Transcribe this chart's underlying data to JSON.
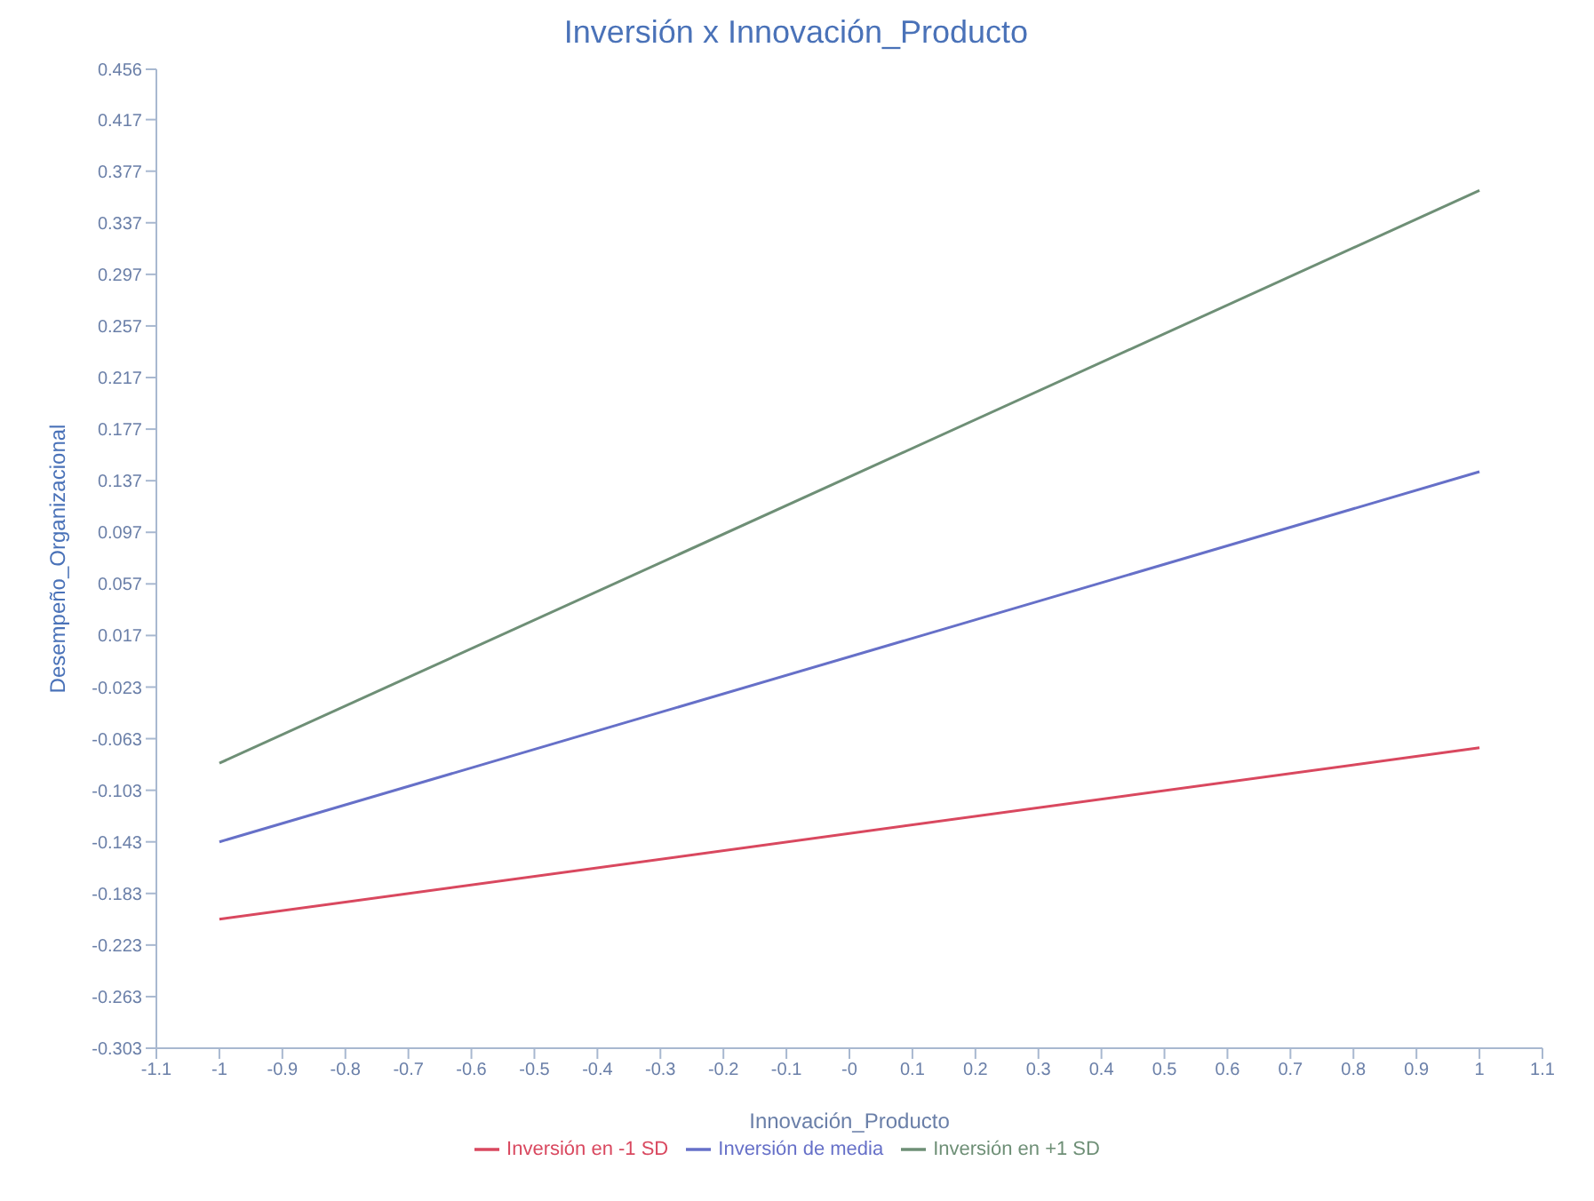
{
  "chart_data": {
    "type": "line",
    "title": "Inversión x Innovación_Producto",
    "xlabel": "Innovación_Producto",
    "ylabel": "Desempeño_Organizacional",
    "x": [
      -1,
      1
    ],
    "series": [
      {
        "name": "Inversión en -1 SD",
        "color": "#d9485f",
        "values": [
          -0.203,
          -0.07
        ]
      },
      {
        "name": "Inversión de media",
        "color": "#6670c8",
        "values": [
          -0.143,
          0.144
        ]
      },
      {
        "name": "Inversión en +1 SD",
        "color": "#6e8f76",
        "values": [
          -0.082,
          0.362
        ]
      }
    ],
    "xlim": [
      -1.1,
      1.1
    ],
    "xticks": [
      -1.1,
      -1,
      -0.9,
      -0.8,
      -0.7,
      -0.6,
      -0.5,
      -0.4,
      -0.3,
      -0.2,
      -0.1,
      {
        "value": 0,
        "label": "-0"
      },
      0.1,
      0.2,
      0.3,
      0.4,
      0.5,
      0.6,
      0.7,
      0.8,
      0.9,
      1,
      1.1
    ],
    "ylim": [
      -0.303,
      0.456
    ],
    "yticks": [
      -0.303,
      -0.263,
      -0.223,
      -0.183,
      -0.143,
      -0.103,
      -0.063,
      -0.023,
      0.017,
      0.057,
      0.097,
      0.137,
      0.177,
      0.217,
      0.257,
      0.297,
      0.337,
      0.377,
      0.417,
      0.456
    ],
    "legend": "bottom",
    "marker": "none",
    "line_style": "solid"
  }
}
